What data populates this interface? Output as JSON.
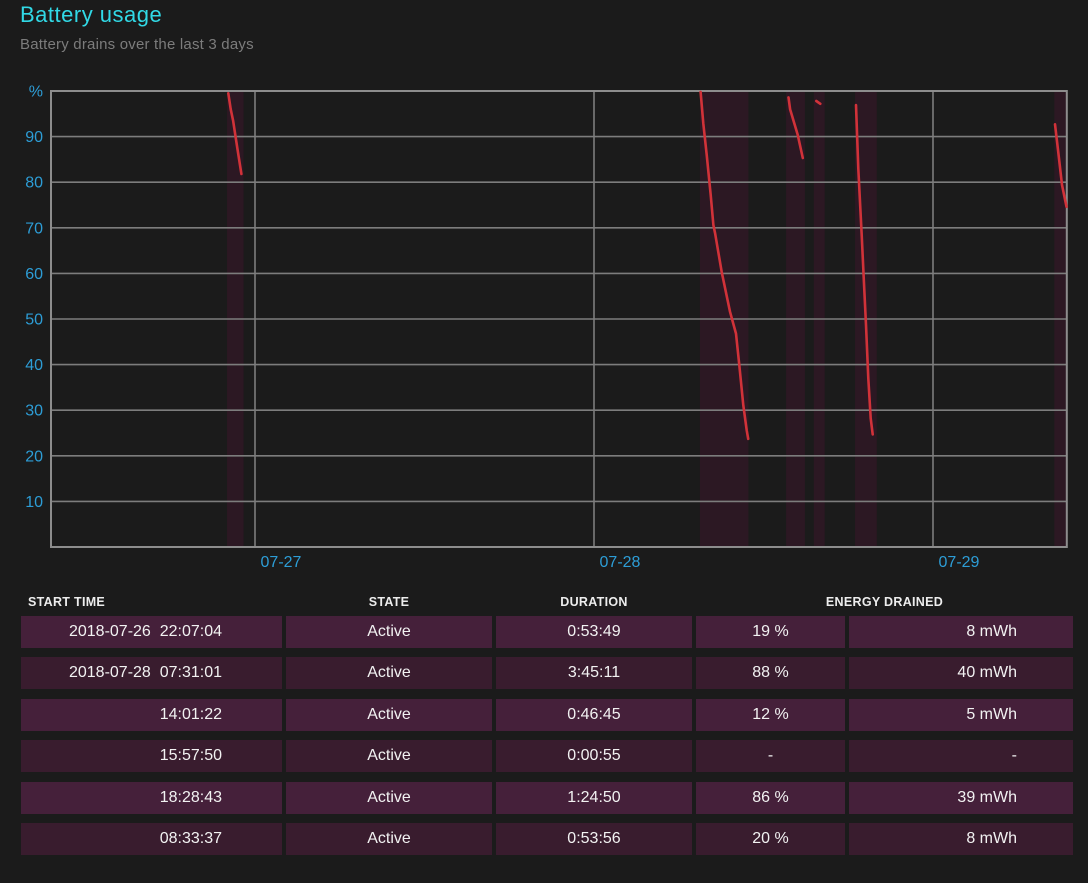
{
  "page": {
    "title": "Battery usage",
    "subtitle": "Battery drains over the last 3 days"
  },
  "colors": {
    "background": "#1b1b1b",
    "accent_title": "#31d9e6",
    "subtitle_gray": "#7c7c7c",
    "axis_label_blue": "#2d9dd6",
    "gridline_gray": "#7d7d7d",
    "plot_border_gray": "#8d8d8d",
    "drain_line_red": "#d13239",
    "drain_band_plum": "#2c1823",
    "row_light": "#45203a",
    "row_dark": "#391c2e",
    "table_text": "#f2f2f2"
  },
  "chart_data": {
    "type": "line",
    "title": "Battery usage",
    "subtitle": "Battery drains over the last 3 days",
    "ylabel": "%",
    "y_axis": {
      "unit_label": "%",
      "ticks": [
        90,
        80,
        70,
        60,
        50,
        40,
        30,
        20,
        10
      ],
      "range": [
        0,
        100
      ]
    },
    "x_axis": {
      "tick_labels": [
        "07-27",
        "07-28",
        "07-29"
      ],
      "tick_hours": [
        0,
        24,
        48
      ],
      "domain_hours": [
        -14.44,
        57.5
      ]
    },
    "grid": true,
    "legend": false,
    "drains": [
      {
        "band": [
          -1.98,
          -0.81
        ],
        "points": [
          [
            -1.89,
            99.5
          ],
          [
            -1.72,
            96.0
          ],
          [
            -1.55,
            93.5
          ],
          [
            -1.25,
            87.5
          ],
          [
            -0.96,
            81.8
          ]
        ]
      },
      {
        "band": [
          31.5,
          34.93
        ],
        "points": [
          [
            31.55,
            99.8
          ],
          [
            31.74,
            92.9
          ],
          [
            31.98,
            86.0
          ],
          [
            32.26,
            77.2
          ],
          [
            32.45,
            70.6
          ],
          [
            32.57,
            68.8
          ],
          [
            33.04,
            60.3
          ],
          [
            33.63,
            51.6
          ],
          [
            34.05,
            46.8
          ],
          [
            34.29,
            39.9
          ],
          [
            34.57,
            31.1
          ],
          [
            34.81,
            25.6
          ],
          [
            34.92,
            23.7
          ]
        ]
      },
      {
        "band": [
          37.6,
          38.93
        ],
        "points": [
          [
            37.77,
            98.6
          ],
          [
            37.88,
            96.0
          ],
          [
            38.42,
            90.4
          ],
          [
            38.78,
            85.3
          ]
        ]
      },
      {
        "band": [
          39.56,
          40.33
        ],
        "points": [
          [
            39.74,
            97.8
          ],
          [
            40.02,
            97.2
          ]
        ]
      },
      {
        "band": [
          42.48,
          44.02
        ],
        "points": [
          [
            42.55,
            96.9
          ],
          [
            42.71,
            83.0
          ],
          [
            42.95,
            68.4
          ],
          [
            43.11,
            58.2
          ],
          [
            43.26,
            48.7
          ],
          [
            43.42,
            37.0
          ],
          [
            43.59,
            28.2
          ],
          [
            43.73,
            24.7
          ]
        ]
      },
      {
        "band": [
          56.59,
          57.5
        ],
        "points": [
          [
            56.64,
            92.7
          ],
          [
            56.85,
            87.1
          ],
          [
            57.13,
            79.4
          ],
          [
            57.45,
            74.6
          ]
        ]
      }
    ]
  },
  "table": {
    "headers": [
      "START TIME",
      "STATE",
      "DURATION",
      "ENERGY DRAINED"
    ],
    "rows": [
      {
        "start_time": "2018-07-26  22:07:04",
        "state": "Active",
        "duration": "0:53:49",
        "percent": "19 %",
        "energy": "8 mWh"
      },
      {
        "start_time": "2018-07-28  07:31:01",
        "state": "Active",
        "duration": "3:45:11",
        "percent": "88 %",
        "energy": "40 mWh"
      },
      {
        "start_time": "14:01:22",
        "state": "Active",
        "duration": "0:46:45",
        "percent": "12 %",
        "energy": "5 mWh"
      },
      {
        "start_time": "15:57:50",
        "state": "Active",
        "duration": "0:00:55",
        "percent": "-",
        "energy": "-"
      },
      {
        "start_time": "18:28:43",
        "state": "Active",
        "duration": "1:24:50",
        "percent": "86 %",
        "energy": "39 mWh"
      },
      {
        "start_time": "08:33:37",
        "state": "Active",
        "duration": "0:53:56",
        "percent": "20 %",
        "energy": "8 mWh"
      }
    ]
  }
}
